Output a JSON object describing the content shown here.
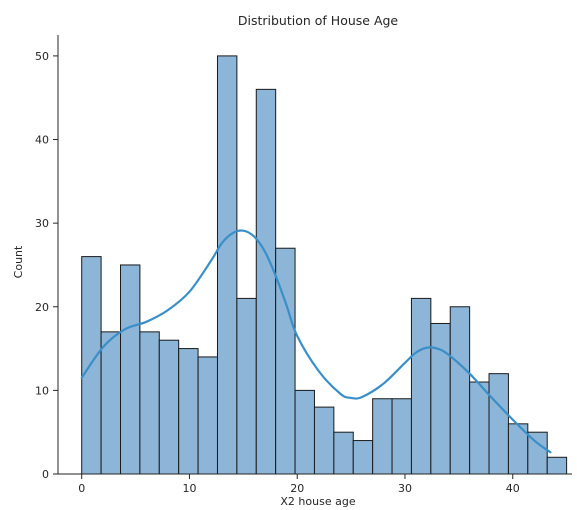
{
  "chart_data": {
    "type": "bar",
    "title": "Distribution of House Age",
    "xlabel": "X2 house age",
    "ylabel": "Count",
    "xlim": [
      -2.2,
      45.5
    ],
    "ylim": [
      0,
      52.5
    ],
    "xticks": [
      0,
      10,
      20,
      30,
      40
    ],
    "yticks": [
      0,
      10,
      20,
      30,
      40,
      50
    ],
    "bin_start": 0,
    "bin_width": 1.8,
    "values": [
      26,
      17,
      25,
      17,
      16,
      15,
      14,
      50,
      21,
      46,
      27,
      10,
      8,
      5,
      4,
      9,
      9,
      21,
      18,
      20,
      11,
      12,
      6,
      5,
      2
    ],
    "kde": {
      "x": [
        0,
        2,
        4,
        6,
        8,
        10,
        12,
        13,
        14,
        15,
        16,
        17,
        18,
        19,
        20,
        22,
        24,
        25,
        26,
        28,
        30,
        31,
        32,
        33,
        34,
        36,
        38,
        40,
        42,
        43.5
      ],
      "y": [
        11.5,
        15.2,
        17.3,
        18.2,
        19.6,
        21.8,
        25.5,
        27.6,
        28.8,
        29.1,
        28.4,
        26.6,
        23.7,
        20.2,
        16.5,
        12.3,
        9.6,
        9.1,
        9.2,
        10.8,
        13.3,
        14.5,
        15.1,
        15.0,
        14.3,
        12.0,
        9.2,
        6.5,
        4.0,
        2.6
      ]
    },
    "colors": {
      "bar_fill": "#8db5d8",
      "bar_edge": "#1a1a1a",
      "kde_line": "#3a8fc8"
    },
    "grid": false,
    "legend": "none"
  }
}
